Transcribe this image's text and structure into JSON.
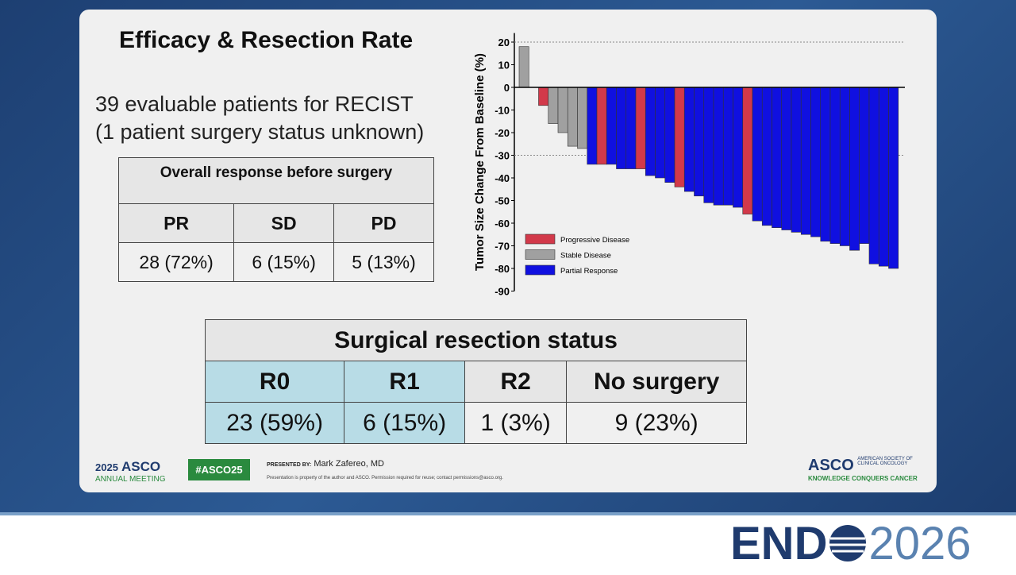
{
  "slide": {
    "title": "Efficacy & Resection Rate",
    "intro": [
      "39 evaluable patients for RECIST",
      "(1 patient surgery status unknown)"
    ],
    "response_table": {
      "caption": "Overall response before surgery",
      "header": [
        "PR",
        "SD",
        "PD"
      ],
      "row": [
        "28 (72%)",
        "6 (15%)",
        "5 (13%)"
      ]
    },
    "resection_table": {
      "caption": "Surgical resection status",
      "header": [
        "R0",
        "R1",
        "R2",
        "No surgery"
      ],
      "row": [
        "23 (59%)",
        "6 (15%)",
        "1 (3%)",
        "9 (23%)"
      ]
    },
    "footer": {
      "meeting_year": "2025",
      "meeting_name": "ASCO",
      "meeting_sub": "ANNUAL MEETING",
      "hashtag": "#ASCO25",
      "presented_by": "PRESENTED BY:",
      "presenter": "Mark Zafereo, MD",
      "notice": "Presentation is property of the author and ASCO. Permission required for reuse; contact permissions@asco.org.",
      "org": "ASCO",
      "org_full": "AMERICAN SOCIETY OF CLINICAL ONCOLOGY",
      "org_tagline": "KNOWLEDGE CONQUERS CANCER"
    },
    "banner": {
      "left": "END",
      "right": "2026"
    }
  },
  "chart_data": {
    "type": "waterfall",
    "y_label": "Tumor Size Change From Baseline (%)",
    "values": [
      18,
      0,
      -8,
      -16,
      -20,
      -26,
      -27,
      -34,
      -34,
      -34,
      -36,
      -36,
      -36,
      -39,
      -40,
      -42,
      -44,
      -46,
      -48,
      -51,
      -52,
      -52,
      -53,
      -56,
      -59,
      -61,
      -62,
      -63,
      -64,
      -65,
      -66,
      -68,
      -69,
      -70,
      -72,
      -69,
      -78,
      -79,
      -80
    ],
    "bar_colors": [
      "#a0a0a0",
      "#a0a0a0",
      "#d2394a",
      "#a0a0a0",
      "#a0a0a0",
      "#a0a0a0",
      "#a0a0a0",
      "#1010e0",
      "#d2394a",
      "#1010e0",
      "#1010e0",
      "#1010e0",
      "#d2394a",
      "#1010e0",
      "#1010e0",
      "#1010e0",
      "#d2394a",
      "#1010e0",
      "#1010e0",
      "#1010e0",
      "#1010e0",
      "#1010e0",
      "#1010e0",
      "#d2394a",
      "#1010e0",
      "#1010e0",
      "#1010e0",
      "#1010e0",
      "#1010e0",
      "#1010e0",
      "#1010e0",
      "#1010e0",
      "#1010e0",
      "#1010e0",
      "#1010e0",
      "#1010e0",
      "#1010e0",
      "#1010e0",
      "#1010e0"
    ],
    "legend": [
      {
        "name": "Progressive Disease",
        "color": "#d2394a"
      },
      {
        "name": "Stable Disease",
        "color": "#a0a0a0"
      },
      {
        "name": "Partial Response",
        "color": "#1010e0"
      }
    ],
    "ylim": [
      -90,
      24
    ],
    "yticks": [
      20,
      10,
      0,
      -10,
      -20,
      -30,
      -40,
      -50,
      -60,
      -70,
      -80,
      -90
    ],
    "reference_lines": [
      20,
      -30
    ]
  }
}
